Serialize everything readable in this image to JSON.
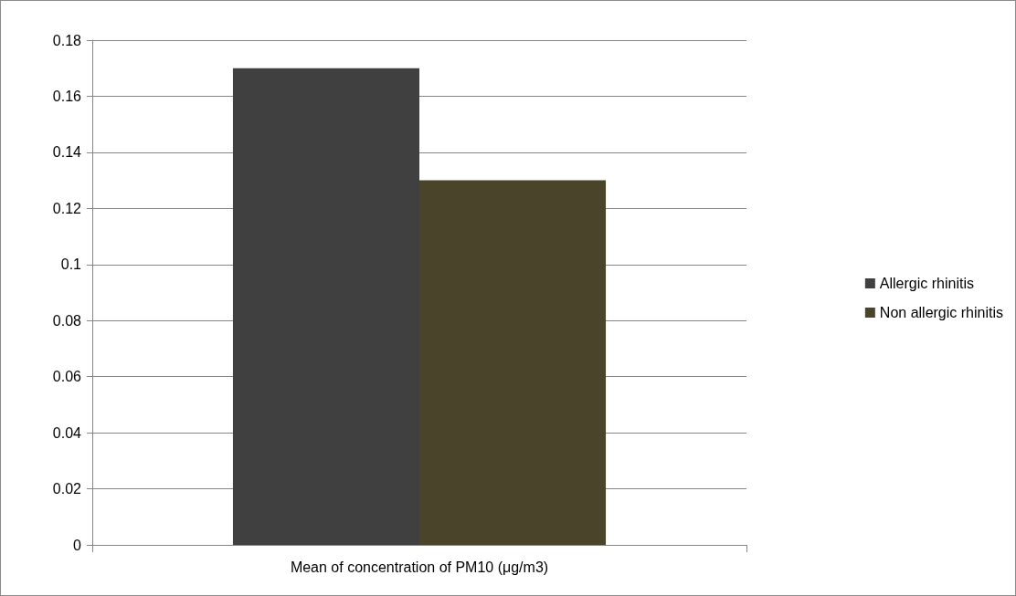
{
  "chart_data": {
    "type": "bar",
    "categories": [
      "Mean of concentration of PM10 (μg/m3)"
    ],
    "series": [
      {
        "name": "Allergic rhinitis",
        "color": "#404040",
        "values": [
          0.17
        ]
      },
      {
        "name": "Non allergic rhinitis",
        "color": "#4a452a",
        "values": [
          0.13
        ]
      }
    ],
    "ylim": [
      0,
      0.18
    ],
    "yticks": [
      0,
      0.02,
      0.04,
      0.06,
      0.08,
      0.1,
      0.12,
      0.14,
      0.16,
      0.18
    ],
    "grid": "y",
    "legend": "right"
  }
}
